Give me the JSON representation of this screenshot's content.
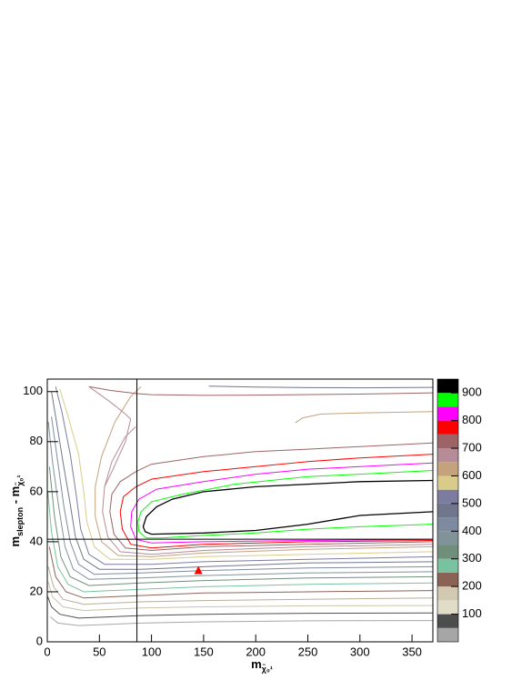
{
  "chart_data": {
    "type": "contour",
    "xlabel": {
      "parts": [
        "m",
        "χ̃₀¹"
      ]
    },
    "ylabel": {
      "parts": [
        "m",
        "slepton",
        " - m",
        "χ̃₀¹"
      ]
    },
    "xlim": [
      0,
      370
    ],
    "xticks": [
      0,
      50,
      100,
      150,
      200,
      250,
      300,
      350
    ],
    "ylim": [
      0,
      105
    ],
    "yticks": [
      0,
      20,
      40,
      60,
      80,
      100
    ],
    "zlim": [
      0,
      950
    ],
    "zticks": [
      100,
      200,
      300,
      400,
      500,
      600,
      700,
      800,
      900
    ],
    "palette": [
      "#d3d3d3",
      "#a6a6a6",
      "#4d4d4d",
      "#e0dcc8",
      "#d1c9b0",
      "#8a6355",
      "#79c2a0",
      "#6f8f7a",
      "#7f9398",
      "#7d8aa0",
      "#70768c",
      "#7c7ca0",
      "#d9cc8a",
      "#c4a27c",
      "#b68c98",
      "#9c6466",
      "#ff0000",
      "#ff00ff",
      "#00ff00",
      "#000000"
    ],
    "hline": 41,
    "vline": 86,
    "marker": {
      "x": 145,
      "y": 28.5,
      "color": "#ff0000"
    },
    "contours": [
      {
        "color": "#000000",
        "x": [
          370,
          300,
          250,
          200,
          150,
          100,
          94,
          92,
          95,
          105,
          120,
          150,
          200,
          250,
          300,
          370
        ],
        "y": [
          52,
          50.5,
          47,
          44.5,
          43.5,
          43,
          44,
          46,
          50,
          54,
          57,
          60,
          62,
          63,
          64,
          64.5
        ]
      },
      {
        "color": "#00ff00",
        "x": [
          370,
          300,
          250,
          200,
          150,
          110,
          95,
          88,
          87,
          90,
          100,
          130,
          180,
          250,
          300,
          370
        ],
        "y": [
          47,
          46,
          45,
          43.5,
          42.5,
          41.5,
          41.5,
          44,
          48,
          52,
          56,
          59,
          63,
          66,
          67,
          68.5
        ]
      },
      {
        "color": "#ff00ff",
        "x": [
          370,
          250,
          150,
          100,
          85,
          80,
          81,
          88,
          105,
          150,
          200,
          250,
          300,
          370
        ],
        "y": [
          41,
          40.5,
          40,
          39.5,
          41,
          46,
          52,
          57,
          61,
          64,
          67,
          69,
          70,
          71.5
        ]
      },
      {
        "color": "#ff0000",
        "x": [
          370,
          250,
          150,
          100,
          80,
          72,
          70,
          73,
          85,
          100,
          150,
          200,
          250,
          300,
          370
        ],
        "y": [
          40.5,
          40,
          39,
          37.5,
          39,
          45,
          52,
          58,
          62,
          65,
          68,
          70,
          72,
          73.5,
          75
        ]
      },
      {
        "color": "#9c6466",
        "x": [
          370,
          250,
          150,
          100,
          75,
          64,
          60,
          62,
          70,
          85,
          100,
          150,
          200,
          250,
          370
        ],
        "y": [
          40,
          39,
          38,
          36.5,
          37.5,
          43,
          52,
          59,
          64,
          68,
          71,
          74,
          76,
          77,
          79.5
        ]
      },
      {
        "color": "#b68c98",
        "x": [
          370,
          250,
          150,
          100,
          70,
          58,
          53,
          55,
          62,
          75,
          85
        ],
        "y": [
          39,
          38,
          36.5,
          35,
          36,
          42,
          52,
          62,
          72,
          82,
          86
        ]
      },
      {
        "color": "#c4a27c",
        "x": [
          370,
          250,
          150,
          100,
          68,
          52,
          46,
          46,
          52,
          65,
          80,
          90
        ],
        "y": [
          38,
          37,
          35.5,
          34,
          34.5,
          40,
          50,
          62,
          74,
          88,
          98,
          102
        ]
      },
      {
        "color": "#d9cc8a",
        "x": [
          370,
          250,
          150,
          100,
          60,
          45,
          38,
          35,
          30,
          20,
          12
        ],
        "y": [
          36,
          35,
          34,
          33,
          33,
          38,
          48,
          60,
          75,
          90,
          101
        ]
      },
      {
        "color": "#7c7ca0",
        "x": [
          370,
          250,
          150,
          100,
          55,
          40,
          32,
          28,
          22,
          14,
          8
        ],
        "y": [
          34,
          33,
          32,
          31,
          31,
          35,
          45,
          58,
          75,
          92,
          102
        ]
      },
      {
        "color": "#70768c",
        "x": [
          370,
          250,
          150,
          90,
          50,
          35,
          27,
          22,
          15,
          8,
          4
        ],
        "y": [
          32,
          31.5,
          30,
          29,
          29,
          33,
          42,
          55,
          72,
          90,
          100
        ]
      },
      {
        "color": "#7d8aa0",
        "x": [
          370,
          250,
          150,
          90,
          45,
          30,
          22,
          16,
          10,
          4
        ],
        "y": [
          30,
          29.5,
          28.5,
          27.5,
          27,
          31,
          40,
          54,
          72,
          90
        ]
      },
      {
        "color": "#7f9398",
        "x": [
          370,
          250,
          150,
          90,
          40,
          25,
          17,
          11,
          5,
          1
        ],
        "y": [
          28,
          27.5,
          26.5,
          25.5,
          25,
          29,
          38,
          54,
          72,
          88
        ]
      },
      {
        "color": "#6f8f7a",
        "x": [
          370,
          250,
          150,
          90,
          40,
          22,
          13,
          7,
          2
        ],
        "y": [
          26,
          25.5,
          24.5,
          23.5,
          22.5,
          26,
          34,
          50,
          70
        ]
      },
      {
        "color": "#79c2a0",
        "x": [
          370,
          250,
          150,
          90,
          35,
          20,
          10,
          4,
          0.5
        ],
        "y": [
          23.5,
          23,
          22,
          21,
          20,
          23,
          30,
          44,
          60
        ]
      },
      {
        "color": "#8a6355",
        "x": [
          370,
          250,
          150,
          90,
          35,
          18,
          8,
          2
        ],
        "y": [
          20.5,
          20,
          19.5,
          18.5,
          17.5,
          20,
          26,
          38
        ]
      },
      {
        "color": "#b8ae98",
        "x": [
          370,
          250,
          150,
          90,
          35,
          15,
          6,
          1
        ],
        "y": [
          17.5,
          17,
          16.5,
          16,
          15,
          17,
          22,
          30
        ]
      },
      {
        "color": "#c9c2a9",
        "x": [
          370,
          250,
          150,
          90,
          35,
          15,
          5,
          1
        ],
        "y": [
          14.5,
          14.4,
          14,
          13.5,
          12.5,
          14,
          18,
          24
        ]
      },
      {
        "color": "#505050",
        "x": [
          370,
          250,
          150,
          90,
          30,
          12,
          4,
          0.5
        ],
        "y": [
          11.5,
          11.4,
          11,
          10.5,
          9.5,
          11,
          14,
          18
        ]
      },
      {
        "color": "#a6a6a6",
        "x": [
          370,
          250,
          150,
          90,
          30,
          10,
          3
        ],
        "y": [
          8.5,
          8.4,
          8,
          7.5,
          6.5,
          7.5,
          10
        ]
      },
      {
        "color": "#9c6466",
        "x": [
          40,
          60,
          80,
          86,
          100,
          150,
          200,
          300,
          370
        ],
        "y": [
          102,
          100.5,
          99.5,
          99.2,
          98.8,
          98.5,
          98.6,
          99,
          99.5
        ]
      },
      {
        "color": "#70768c",
        "x": [
          155,
          200,
          250,
          300,
          370
        ],
        "y": [
          102.2,
          101.8,
          101.6,
          101.5,
          101.7
        ]
      },
      {
        "color": "#c4a27c",
        "x": [
          238,
          245,
          262,
          300,
          370
        ],
        "y": [
          87.6,
          89.5,
          91,
          91.5,
          92
        ]
      },
      {
        "color": "#b68c98",
        "x": [
          40,
          60,
          75,
          80,
          75,
          62,
          55
        ],
        "y": [
          102,
          96,
          91,
          89,
          80,
          68,
          62
        ]
      }
    ]
  }
}
